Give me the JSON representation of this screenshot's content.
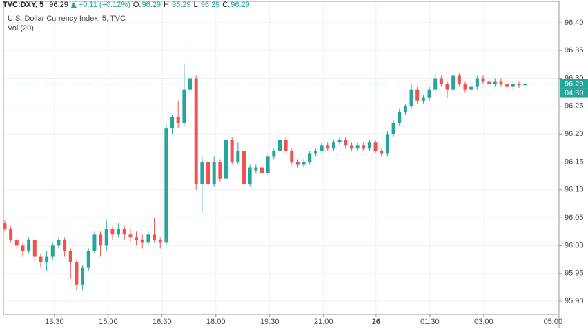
{
  "header": {
    "symbol": "TVC:DXY, 5",
    "price": 96.29,
    "change": "+0.11 (+0.12%)",
    "o_label": "O:",
    "o": 96.29,
    "h_label": "H:",
    "h": 96.29,
    "l_label": "L:",
    "l": 96.29,
    "c_label": "C:",
    "c": 96.29
  },
  "chart_data": {
    "type": "candlestick",
    "title": "U.S. Dollar Currency Index, 5, TVC",
    "subtitle": "Vol (20)",
    "up_color": "#26a69a",
    "down_color": "#ef5350",
    "grid": true,
    "x": [
      0,
      1,
      2,
      3,
      4,
      5,
      6,
      7,
      8,
      9,
      10,
      11,
      12,
      13,
      14,
      15,
      16,
      17,
      18,
      19,
      20,
      21,
      22,
      23,
      24,
      25,
      26,
      27,
      28,
      29,
      30,
      31,
      32,
      33,
      34,
      35,
      36,
      37,
      38,
      39,
      40,
      41,
      42,
      43,
      44,
      45,
      46,
      47,
      48,
      49,
      50,
      51,
      52,
      53,
      54,
      55,
      56,
      57,
      58,
      59,
      60,
      61,
      62,
      63,
      64,
      65,
      66,
      67,
      68,
      69,
      70,
      71,
      72,
      73,
      74,
      75,
      76,
      77,
      78,
      79,
      80,
      81,
      82,
      83,
      84,
      85,
      86,
      87
    ],
    "open": [
      96.04,
      96.03,
      96.01,
      96.0,
      95.99,
      96.01,
      95.98,
      95.97,
      95.98,
      96.0,
      96.01,
      95.99,
      95.97,
      95.93,
      95.96,
      95.99,
      96.02,
      96.0,
      96.03,
      96.02,
      96.03,
      96.02,
      96.015,
      96.01,
      96.005,
      96.02,
      96.01,
      96.005,
      96.21,
      96.23,
      96.22,
      96.28,
      96.3,
      96.11,
      96.15,
      96.11,
      96.15,
      96.12,
      96.19,
      96.15,
      96.17,
      96.11,
      96.135,
      96.14,
      96.13,
      96.16,
      96.17,
      96.19,
      96.17,
      96.15,
      96.145,
      96.15,
      96.165,
      96.17,
      96.18,
      96.175,
      96.185,
      96.19,
      96.18,
      96.175,
      96.18,
      96.175,
      96.185,
      96.17,
      96.165,
      96.2,
      96.22,
      96.24,
      96.25,
      96.28,
      96.26,
      96.265,
      96.28,
      96.3,
      96.29,
      96.28,
      96.305,
      96.29,
      96.28,
      96.285,
      96.3,
      96.295,
      96.29,
      96.295,
      96.29,
      96.285,
      96.29,
      96.288
    ],
    "high": [
      96.045,
      96.035,
      96.015,
      96.005,
      96.015,
      96.015,
      95.985,
      95.99,
      96.005,
      96.015,
      96.015,
      95.995,
      95.975,
      95.965,
      95.995,
      96.025,
      96.025,
      96.045,
      96.035,
      96.04,
      96.035,
      96.03,
      96.025,
      96.02,
      96.025,
      96.05,
      96.015,
      96.22,
      96.235,
      96.26,
      96.325,
      96.365,
      96.305,
      96.16,
      96.155,
      96.16,
      96.155,
      96.195,
      96.195,
      96.185,
      96.175,
      96.145,
      96.145,
      96.145,
      96.165,
      96.175,
      96.205,
      96.195,
      96.175,
      96.155,
      96.155,
      96.17,
      96.175,
      96.185,
      96.185,
      96.19,
      96.195,
      96.195,
      96.185,
      96.185,
      96.185,
      96.19,
      96.19,
      96.175,
      96.205,
      96.225,
      96.245,
      96.255,
      96.29,
      96.285,
      96.27,
      96.285,
      96.31,
      96.305,
      96.295,
      96.31,
      96.31,
      96.295,
      96.29,
      96.305,
      96.305,
      96.3,
      96.3,
      96.3,
      96.295,
      96.295,
      96.295,
      96.295
    ],
    "low": [
      96.025,
      96.005,
      95.995,
      95.98,
      95.985,
      95.975,
      95.96,
      95.955,
      95.975,
      95.995,
      95.98,
      95.94,
      95.92,
      95.92,
      95.955,
      95.985,
      95.98,
      95.99,
      96.01,
      96.015,
      96.01,
      96.005,
      96.0,
      95.995,
      96.0,
      96.005,
      95.995,
      96.0,
      96.2,
      96.21,
      96.215,
      96.23,
      96.1,
      96.06,
      96.105,
      96.105,
      96.115,
      96.115,
      96.145,
      96.145,
      96.1,
      96.105,
      96.13,
      96.125,
      96.125,
      96.155,
      96.165,
      96.165,
      96.145,
      96.14,
      96.14,
      96.145,
      96.16,
      96.165,
      96.17,
      96.17,
      96.18,
      96.175,
      96.17,
      96.17,
      96.17,
      96.17,
      96.165,
      96.16,
      96.16,
      96.195,
      96.215,
      96.235,
      96.245,
      96.255,
      96.255,
      96.26,
      96.275,
      96.285,
      96.265,
      96.275,
      96.285,
      96.275,
      96.275,
      96.28,
      96.29,
      96.285,
      96.285,
      96.285,
      96.275,
      96.28,
      96.283,
      96.285
    ],
    "close": [
      96.03,
      96.01,
      96.0,
      95.99,
      96.01,
      95.98,
      95.97,
      95.98,
      96.0,
      96.01,
      95.99,
      95.97,
      95.93,
      95.96,
      95.99,
      96.02,
      96.0,
      96.03,
      96.02,
      96.03,
      96.02,
      96.015,
      96.01,
      96.005,
      96.02,
      96.01,
      96.005,
      96.21,
      96.23,
      96.22,
      96.28,
      96.3,
      96.11,
      96.15,
      96.11,
      96.15,
      96.12,
      96.19,
      96.15,
      96.17,
      96.11,
      96.14,
      96.14,
      96.13,
      96.16,
      96.17,
      96.19,
      96.17,
      96.15,
      96.145,
      96.15,
      96.165,
      96.17,
      96.18,
      96.175,
      96.185,
      96.19,
      96.18,
      96.175,
      96.18,
      96.175,
      96.185,
      96.17,
      96.165,
      96.2,
      96.22,
      96.24,
      96.25,
      96.28,
      96.26,
      96.265,
      96.28,
      96.3,
      96.29,
      96.28,
      96.305,
      96.29,
      96.28,
      96.285,
      96.3,
      96.295,
      96.29,
      96.295,
      96.29,
      96.285,
      96.29,
      96.288,
      96.29
    ],
    "xlim": [
      -0.23,
      92.7
    ],
    "xticks": [
      {
        "value": 8.3,
        "label": "13:30"
      },
      {
        "value": 17.3,
        "label": "15:00"
      },
      {
        "value": 26.3,
        "label": "16:30"
      },
      {
        "value": 35.3,
        "label": "18:00"
      },
      {
        "value": 44.3,
        "label": "19:30"
      },
      {
        "value": 53.3,
        "label": "21:00"
      },
      {
        "value": 62.1,
        "label": "26"
      },
      {
        "value": 71.1,
        "label": "01:30"
      },
      {
        "value": 80.1,
        "label": "03:00"
      },
      {
        "value": 91.7,
        "label": "05:00"
      }
    ],
    "ylim": [
      95.8765,
      96.4383
    ],
    "yticks": [
      {
        "value": 96.4,
        "label": "96.40"
      },
      96.35,
      {
        "value": 96.3,
        "label": "96.30"
      },
      96.25,
      {
        "value": 96.2,
        "label": "96.20"
      },
      96.15,
      {
        "value": 96.1,
        "label": "96.10"
      },
      96.05,
      {
        "value": 96.0,
        "label": "96.00"
      },
      95.95,
      {
        "value": 95.9,
        "label": "95.90"
      }
    ],
    "last_price": 96.29,
    "countdown": "04:39"
  }
}
